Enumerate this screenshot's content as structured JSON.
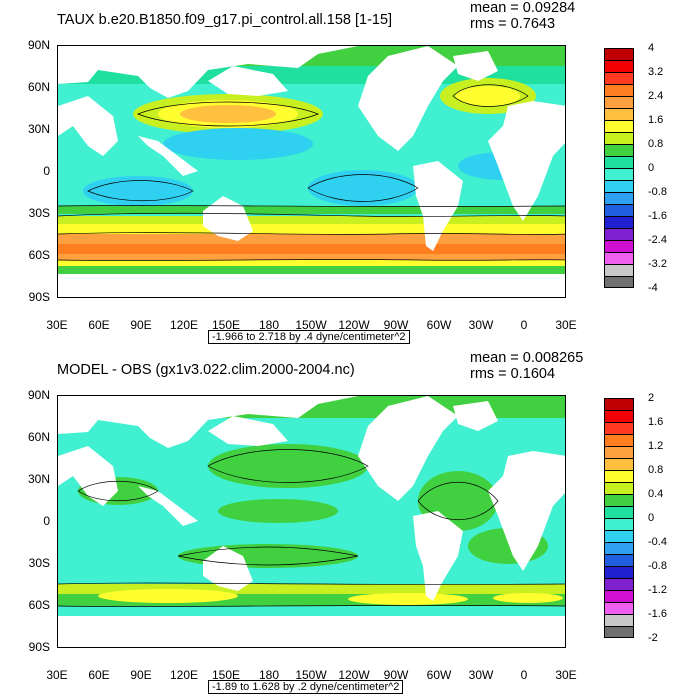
{
  "panels": [
    {
      "title": "TAUX b.e20.B1850.f09_g17.pi_control.all.158 [1-15]",
      "mean": "mean = 0.09284",
      "rms": "rms = 0.7643",
      "caption": "-1.966 to 2.718 by .4 dyne/centimeter^2",
      "colorbar_labels": [
        "4",
        "3.2",
        "2.4",
        "1.6",
        "0.8",
        "0",
        "-0.8",
        "-1.6",
        "-2.4",
        "-3.2",
        "-4"
      ],
      "colorbar_colors": [
        "#c00000",
        "#f00000",
        "#ff3a20",
        "#ff7f20",
        "#ffa040",
        "#ffc040",
        "#ffff30",
        "#c8f020",
        "#40d040",
        "#20e0a0",
        "#40f0d0",
        "#30d0f0",
        "#30a0f0",
        "#2060e0",
        "#2020d0",
        "#8020d0",
        "#d010d0",
        "#f060f0",
        "#c8c8c8",
        "#707070"
      ],
      "lat_labels": [
        "90N",
        "60N",
        "30N",
        "0",
        "30S",
        "60S",
        "90S"
      ],
      "lon_labels": [
        "30E",
        "60E",
        "90E",
        "120E",
        "150E",
        "180",
        "150W",
        "120W",
        "90W",
        "60W",
        "30W",
        "0",
        "30E"
      ]
    },
    {
      "title": "MODEL - OBS (gx1v3.022.clim.2000-2004.nc)",
      "mean": "mean = 0.008265",
      "rms": "rms = 0.1604",
      "caption": "-1.89 to 1.628 by .2 dyne/centimeter^2",
      "colorbar_labels": [
        "2",
        "1.6",
        "1.2",
        "0.8",
        "0.4",
        "0",
        "-0.4",
        "-0.8",
        "-1.2",
        "-1.6",
        "-2"
      ],
      "colorbar_colors": [
        "#c00000",
        "#f00000",
        "#ff3a20",
        "#ff7f20",
        "#ffa040",
        "#ffc040",
        "#ffff30",
        "#c8f020",
        "#40d040",
        "#20e0a0",
        "#40f0d0",
        "#30d0f0",
        "#30a0f0",
        "#2060e0",
        "#2020d0",
        "#8020d0",
        "#d010d0",
        "#f060f0",
        "#c8c8c8",
        "#707070"
      ],
      "lat_labels": [
        "90N",
        "60N",
        "30N",
        "0",
        "30S",
        "60S",
        "90S"
      ],
      "lon_labels": [
        "30E",
        "60E",
        "90E",
        "120E",
        "150E",
        "180",
        "150W",
        "120W",
        "90W",
        "60W",
        "30W",
        "0",
        "30E"
      ]
    }
  ]
}
